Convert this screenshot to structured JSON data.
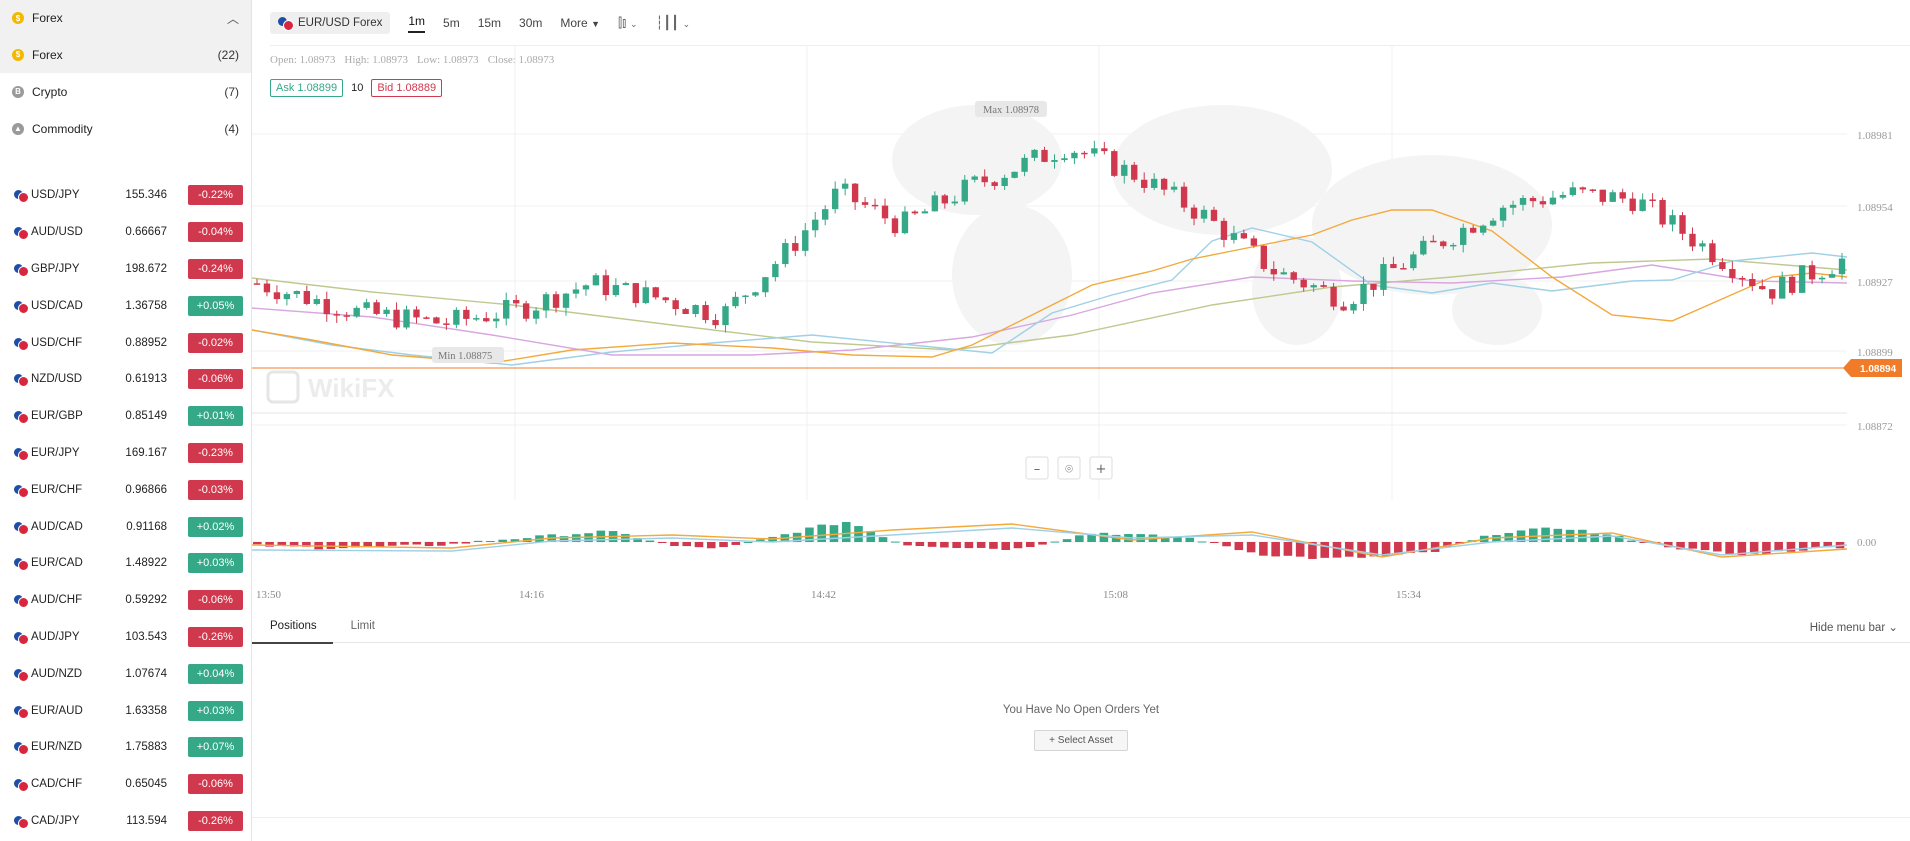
{
  "sidebar": {
    "category_header": {
      "label": "Forex",
      "icon": "coin-dollar-icon"
    },
    "categories": [
      {
        "label": "Forex",
        "count": "(22)",
        "icon": "coin-dollar-icon",
        "active": true
      },
      {
        "label": "Crypto",
        "count": "(7)",
        "icon": "coin-bitcoin-icon",
        "active": false
      },
      {
        "label": "Commodity",
        "count": "(4)",
        "icon": "commodity-icon",
        "active": false
      }
    ],
    "pairs": [
      {
        "name": "USD/JPY",
        "price": "155.346",
        "change": "-0.22%",
        "dir": "neg"
      },
      {
        "name": "AUD/USD",
        "price": "0.66667",
        "change": "-0.04%",
        "dir": "neg"
      },
      {
        "name": "GBP/JPY",
        "price": "198.672",
        "change": "-0.24%",
        "dir": "neg"
      },
      {
        "name": "USD/CAD",
        "price": "1.36758",
        "change": "+0.05%",
        "dir": "pos"
      },
      {
        "name": "USD/CHF",
        "price": "0.88952",
        "change": "-0.02%",
        "dir": "neg"
      },
      {
        "name": "NZD/USD",
        "price": "0.61913",
        "change": "-0.06%",
        "dir": "neg"
      },
      {
        "name": "EUR/GBP",
        "price": "0.85149",
        "change": "+0.01%",
        "dir": "pos"
      },
      {
        "name": "EUR/JPY",
        "price": "169.167",
        "change": "-0.23%",
        "dir": "neg"
      },
      {
        "name": "EUR/CHF",
        "price": "0.96866",
        "change": "-0.03%",
        "dir": "neg"
      },
      {
        "name": "AUD/CAD",
        "price": "0.91168",
        "change": "+0.02%",
        "dir": "pos"
      },
      {
        "name": "EUR/CAD",
        "price": "1.48922",
        "change": "+0.03%",
        "dir": "pos"
      },
      {
        "name": "AUD/CHF",
        "price": "0.59292",
        "change": "-0.06%",
        "dir": "neg"
      },
      {
        "name": "AUD/JPY",
        "price": "103.543",
        "change": "-0.26%",
        "dir": "neg"
      },
      {
        "name": "AUD/NZD",
        "price": "1.07674",
        "change": "+0.04%",
        "dir": "pos"
      },
      {
        "name": "EUR/AUD",
        "price": "1.63358",
        "change": "+0.03%",
        "dir": "pos"
      },
      {
        "name": "EUR/NZD",
        "price": "1.75883",
        "change": "+0.07%",
        "dir": "pos"
      },
      {
        "name": "CAD/CHF",
        "price": "0.65045",
        "change": "-0.06%",
        "dir": "neg"
      },
      {
        "name": "CAD/JPY",
        "price": "113.594",
        "change": "-0.26%",
        "dir": "neg"
      }
    ]
  },
  "toolbar": {
    "symbol": "EUR/USD Forex",
    "timeframes": [
      "1m",
      "5m",
      "15m",
      "30m"
    ],
    "active_timeframe": "1m",
    "more_label": "More"
  },
  "quote": {
    "open": "Open: 1.08973",
    "high": "High: 1.08973",
    "low": "Low: 1.08973",
    "close": "Close: 1.08973",
    "ask": "Ask 1.08899",
    "spread": "10",
    "bid": "Bid 1.08889"
  },
  "chart": {
    "watermark": "WikiFX",
    "max_label": "Max 1.08978",
    "min_label": "Min 1.08875",
    "price_axis": [
      "1.08981",
      "1.08954",
      "1.08927",
      "1.08899",
      "1.08872"
    ],
    "current_price": "1.08894",
    "macd_zero": "0.00",
    "time_axis": [
      "13:50",
      "14:16",
      "14:42",
      "15:08",
      "15:34"
    ],
    "colors": {
      "up": "#35a887",
      "down": "#d0394d",
      "ma_fast": "#f3a93b",
      "ma_mid": "#9fd0e6",
      "ma_slow": "#d8a6e0",
      "ma_long": "#bfc98f",
      "current": "#f07c2a"
    }
  },
  "chart_data": {
    "type": "candlestick",
    "x_ticks": [
      "13:50",
      "14:16",
      "14:42",
      "15:08",
      "15:34"
    ],
    "y_ticks": [
      1.08981,
      1.08954,
      1.08927,
      1.08899,
      1.08872
    ],
    "ylim": [
      1.0886,
      1.0899
    ],
    "max": 1.08978,
    "min": 1.08875,
    "current": 1.08894
  },
  "bottom": {
    "tabs": [
      "Positions",
      "Limit"
    ],
    "active_tab": "Positions",
    "hide_menu": "Hide menu bar",
    "empty_text": "You Have No Open Orders Yet",
    "select_button": "+ Select Asset"
  }
}
